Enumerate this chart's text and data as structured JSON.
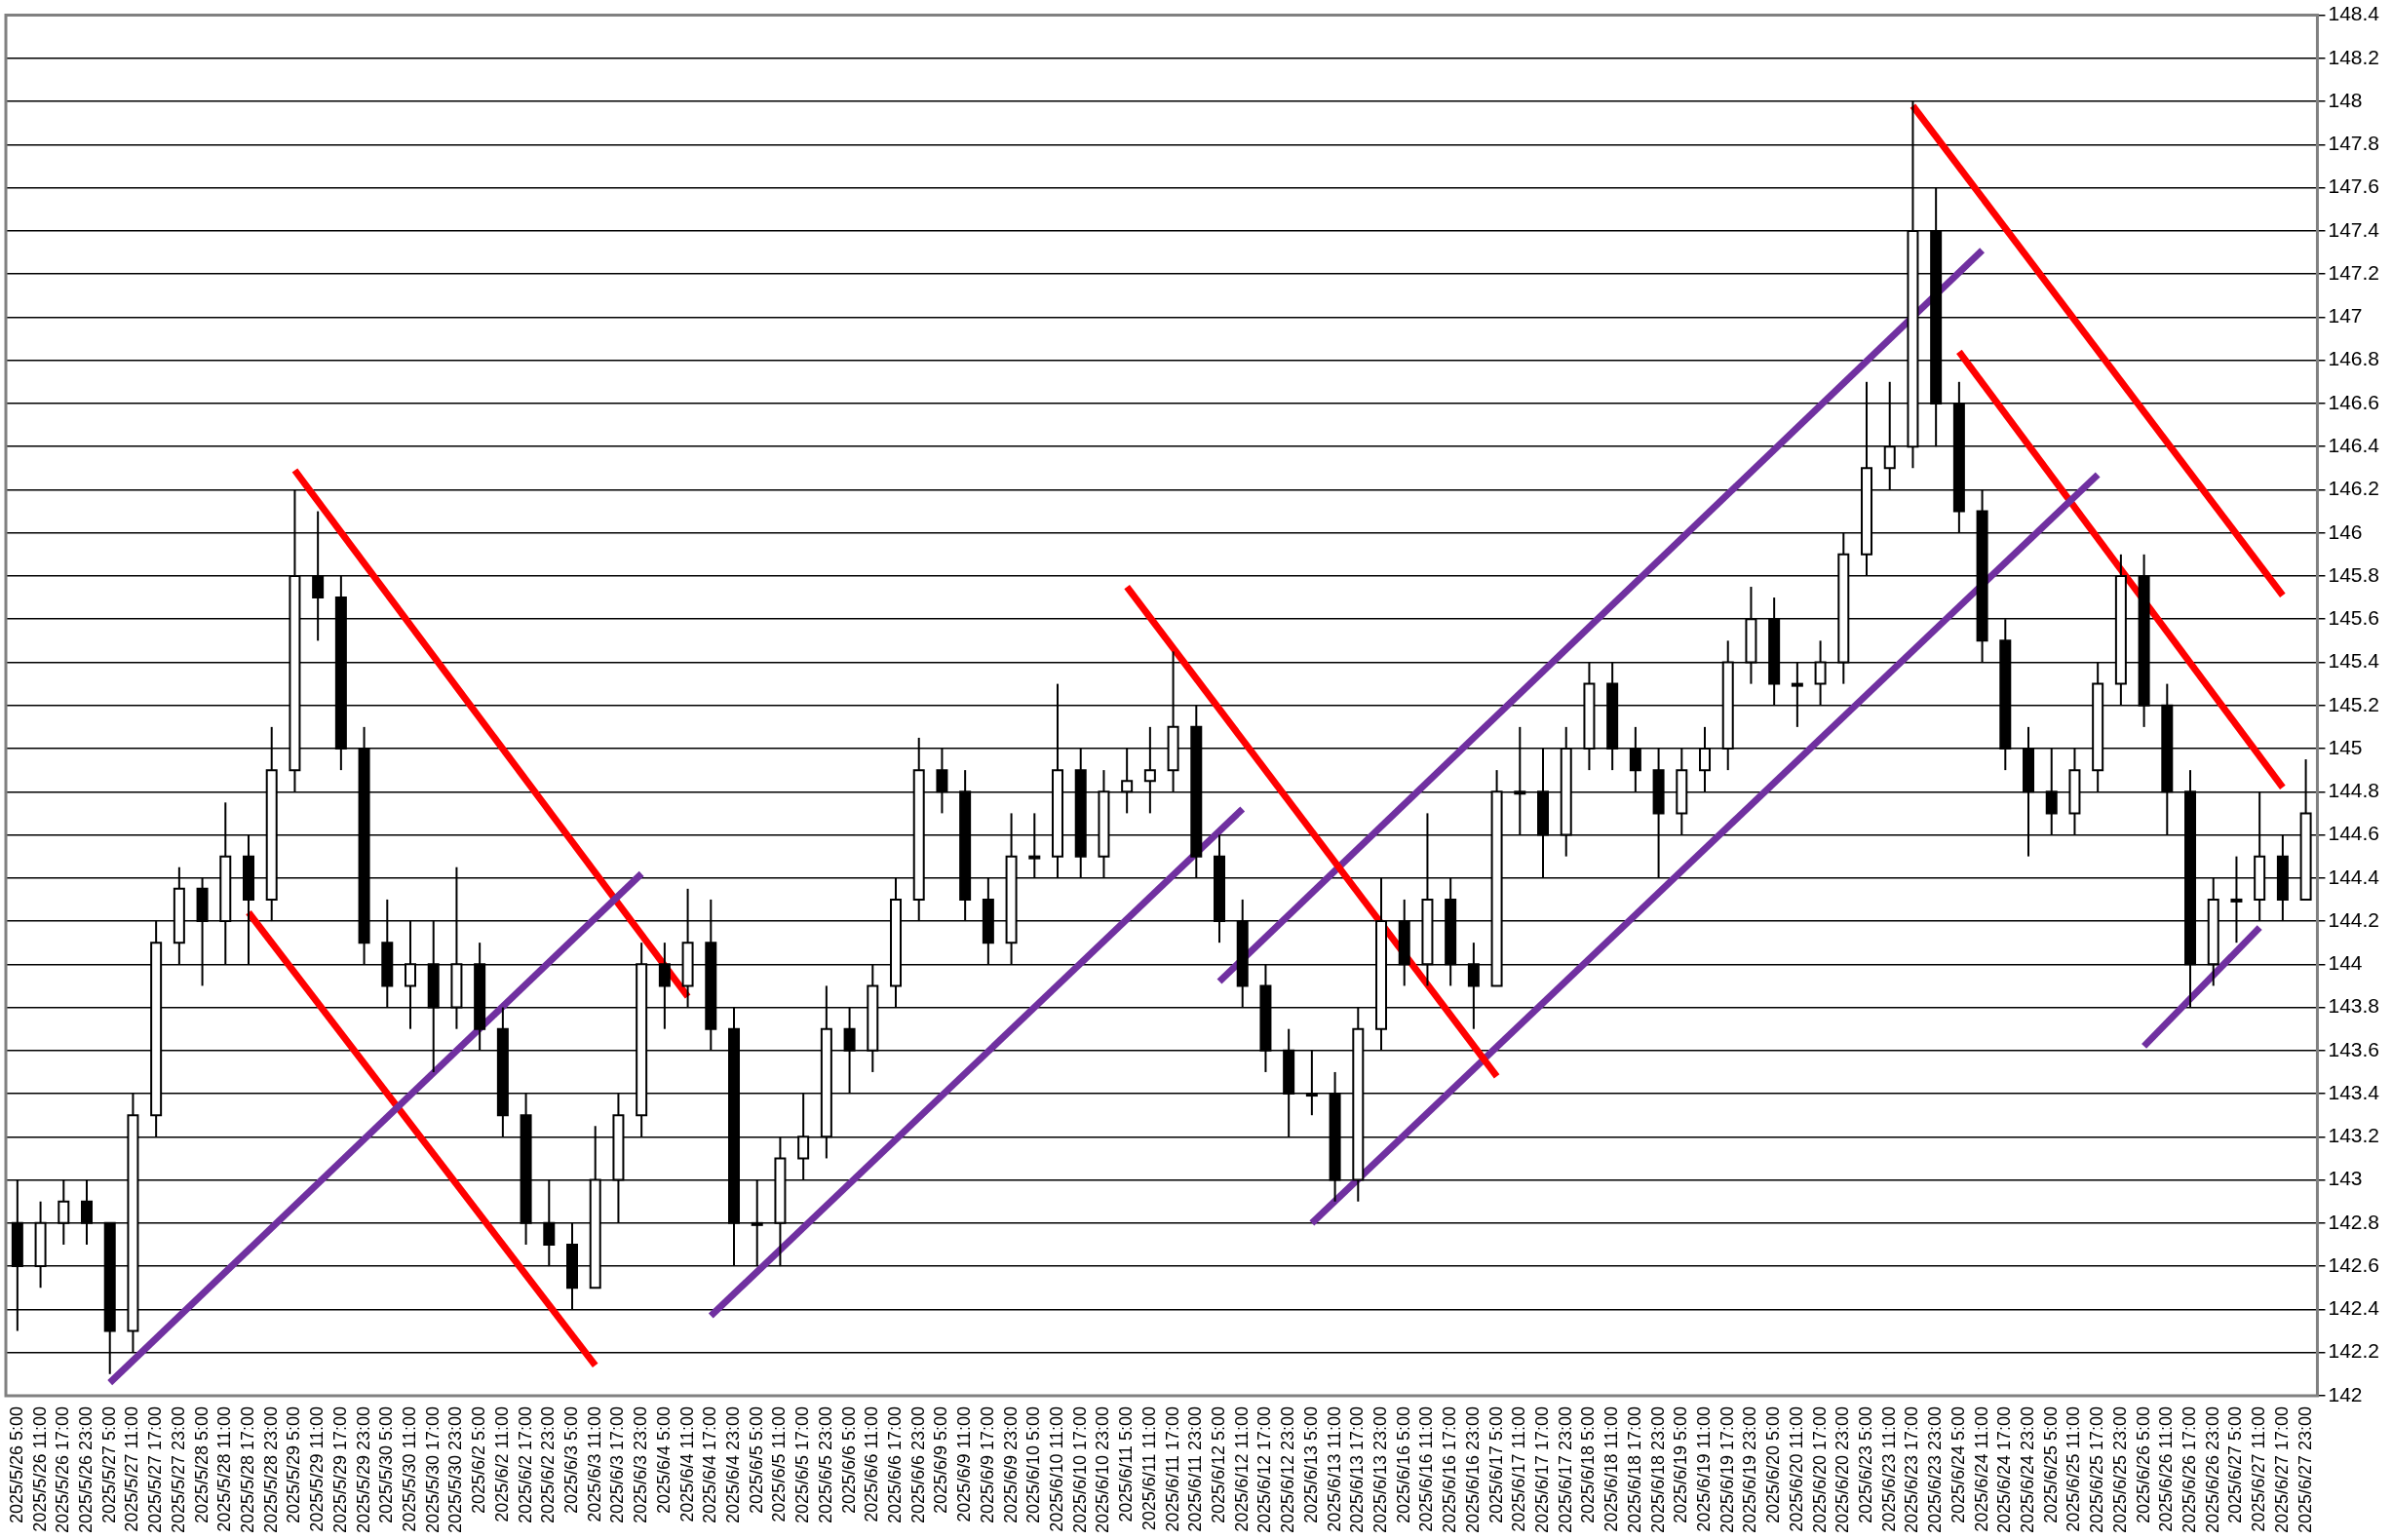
{
  "chart_data": {
    "type": "candlestick",
    "categories": [
      "2025/5/26 5:00",
      "2025/5/26 11:00",
      "2025/5/26 17:00",
      "2025/5/26 23:00",
      "2025/5/27 5:00",
      "2025/5/27 11:00",
      "2025/5/27 17:00",
      "2025/5/27 23:00",
      "2025/5/28 5:00",
      "2025/5/28 11:00",
      "2025/5/28 17:00",
      "2025/5/28 23:00",
      "2025/5/29 5:00",
      "2025/5/29 11:00",
      "2025/5/29 17:00",
      "2025/5/29 23:00",
      "2025/5/30 5:00",
      "2025/5/30 11:00",
      "2025/5/30 17:00",
      "2025/5/30 23:00",
      "2025/6/2 5:00",
      "2025/6/2 11:00",
      "2025/6/2 17:00",
      "2025/6/2 23:00",
      "2025/6/3 5:00",
      "2025/6/3 11:00",
      "2025/6/3 17:00",
      "2025/6/3 23:00",
      "2025/6/4 5:00",
      "2025/6/4 11:00",
      "2025/6/4 17:00",
      "2025/6/4 23:00",
      "2025/6/5 5:00",
      "2025/6/5 11:00",
      "2025/6/5 17:00",
      "2025/6/5 23:00",
      "2025/6/6 5:00",
      "2025/6/6 11:00",
      "2025/6/6 17:00",
      "2025/6/6 23:00",
      "2025/6/9 5:00",
      "2025/6/9 11:00",
      "2025/6/9 17:00",
      "2025/6/9 23:00",
      "2025/6/10 5:00",
      "2025/6/10 11:00",
      "2025/6/10 17:00",
      "2025/6/10 23:00",
      "2025/6/11 5:00",
      "2025/6/11 11:00",
      "2025/6/11 17:00",
      "2025/6/11 23:00",
      "2025/6/12 5:00",
      "2025/6/12 11:00",
      "2025/6/12 17:00",
      "2025/6/12 23:00",
      "2025/6/13 5:00",
      "2025/6/13 11:00",
      "2025/6/13 17:00",
      "2025/6/13 23:00",
      "2025/6/16 5:00",
      "2025/6/16 11:00",
      "2025/6/16 17:00",
      "2025/6/16 23:00",
      "2025/6/17 5:00",
      "2025/6/17 11:00",
      "2025/6/17 17:00",
      "2025/6/17 23:00",
      "2025/6/18 5:00",
      "2025/6/18 11:00",
      "2025/6/18 17:00",
      "2025/6/18 23:00",
      "2025/6/19 5:00",
      "2025/6/19 11:00",
      "2025/6/19 17:00",
      "2025/6/19 23:00",
      "2025/6/20 5:00",
      "2025/6/20 11:00",
      "2025/6/20 17:00",
      "2025/6/20 23:00",
      "2025/6/23 5:00",
      "2025/6/23 11:00",
      "2025/6/23 17:00",
      "2025/6/23 23:00",
      "2025/6/24 5:00",
      "2025/6/24 11:00",
      "2025/6/24 17:00",
      "2025/6/24 23:00",
      "2025/6/25 5:00",
      "2025/6/25 11:00",
      "2025/6/25 17:00",
      "2025/6/25 23:00",
      "2025/6/26 5:00",
      "2025/6/26 11:00",
      "2025/6/26 17:00",
      "2025/6/26 23:00",
      "2025/6/27 5:00",
      "2025/6/27 11:00",
      "2025/6/27 17:00",
      "2025/6/27 23:00"
    ],
    "ohlc": [
      [
        142.8,
        143.0,
        142.3,
        142.6
      ],
      [
        142.6,
        142.9,
        142.5,
        142.8
      ],
      [
        142.8,
        143.0,
        142.7,
        142.9
      ],
      [
        142.9,
        143.0,
        142.7,
        142.8
      ],
      [
        142.8,
        142.8,
        142.1,
        142.3
      ],
      [
        142.3,
        143.4,
        142.2,
        143.3
      ],
      [
        143.3,
        144.2,
        143.2,
        144.1
      ],
      [
        144.1,
        144.45,
        144.0,
        144.35
      ],
      [
        144.35,
        144.4,
        143.9,
        144.2
      ],
      [
        144.2,
        144.75,
        144.0,
        144.5
      ],
      [
        144.5,
        144.6,
        144.0,
        144.3
      ],
      [
        144.3,
        145.1,
        144.2,
        144.9
      ],
      [
        144.9,
        146.2,
        144.8,
        145.8
      ],
      [
        145.8,
        146.1,
        145.5,
        145.7
      ],
      [
        145.7,
        145.8,
        144.9,
        145.0
      ],
      [
        145.0,
        145.1,
        144.0,
        144.1
      ],
      [
        144.1,
        144.3,
        143.8,
        143.9
      ],
      [
        143.9,
        144.2,
        143.7,
        144.0
      ],
      [
        144.0,
        144.2,
        143.5,
        143.8
      ],
      [
        143.8,
        144.45,
        143.7,
        144.0
      ],
      [
        144.0,
        144.1,
        143.6,
        143.7
      ],
      [
        143.7,
        143.8,
        143.2,
        143.3
      ],
      [
        143.3,
        143.4,
        142.7,
        142.8
      ],
      [
        142.8,
        143.0,
        142.6,
        142.7
      ],
      [
        142.7,
        142.8,
        142.4,
        142.5
      ],
      [
        142.5,
        143.25,
        142.5,
        143.0
      ],
      [
        143.0,
        143.4,
        142.8,
        143.3
      ],
      [
        143.3,
        144.1,
        143.2,
        144.0
      ],
      [
        144.0,
        144.1,
        143.7,
        143.9
      ],
      [
        143.9,
        144.35,
        143.8,
        144.1
      ],
      [
        144.1,
        144.3,
        143.6,
        143.7
      ],
      [
        143.7,
        143.8,
        142.6,
        142.8
      ],
      [
        142.8,
        143.0,
        142.6,
        142.8
      ],
      [
        142.8,
        143.2,
        142.6,
        143.1
      ],
      [
        143.1,
        143.4,
        143.0,
        143.2
      ],
      [
        143.2,
        143.9,
        143.1,
        143.7
      ],
      [
        143.7,
        143.8,
        143.4,
        143.6
      ],
      [
        143.6,
        144.0,
        143.5,
        143.9
      ],
      [
        143.9,
        144.4,
        143.8,
        144.3
      ],
      [
        144.3,
        145.05,
        144.2,
        144.9
      ],
      [
        144.9,
        145.0,
        144.7,
        144.8
      ],
      [
        144.8,
        144.9,
        144.2,
        144.3
      ],
      [
        144.3,
        144.4,
        144.0,
        144.1
      ],
      [
        144.1,
        144.7,
        144.0,
        144.5
      ],
      [
        144.5,
        144.7,
        144.4,
        144.5
      ],
      [
        144.5,
        145.3,
        144.4,
        144.9
      ],
      [
        144.9,
        145.0,
        144.4,
        144.5
      ],
      [
        144.5,
        144.9,
        144.4,
        144.8
      ],
      [
        144.8,
        145.0,
        144.7,
        144.85
      ],
      [
        144.85,
        145.1,
        144.7,
        144.9
      ],
      [
        144.9,
        145.45,
        144.8,
        145.1
      ],
      [
        145.1,
        145.2,
        144.4,
        144.5
      ],
      [
        144.5,
        144.6,
        144.1,
        144.2
      ],
      [
        144.2,
        144.3,
        143.8,
        143.9
      ],
      [
        143.9,
        144.0,
        143.5,
        143.6
      ],
      [
        143.6,
        143.7,
        143.2,
        143.4
      ],
      [
        143.4,
        143.6,
        143.3,
        143.4
      ],
      [
        143.4,
        143.5,
        142.9,
        143.0
      ],
      [
        143.0,
        143.8,
        142.9,
        143.7
      ],
      [
        143.7,
        144.4,
        143.6,
        144.2
      ],
      [
        144.2,
        144.3,
        143.9,
        144.0
      ],
      [
        144.0,
        144.7,
        143.9,
        144.3
      ],
      [
        144.3,
        144.4,
        143.9,
        144.0
      ],
      [
        144.0,
        144.1,
        143.7,
        143.9
      ],
      [
        143.9,
        144.9,
        143.9,
        144.8
      ],
      [
        144.8,
        145.1,
        144.6,
        144.8
      ],
      [
        144.8,
        145.0,
        144.4,
        144.6
      ],
      [
        144.6,
        145.1,
        144.5,
        145.0
      ],
      [
        145.0,
        145.4,
        144.9,
        145.3
      ],
      [
        145.3,
        145.4,
        144.9,
        145.0
      ],
      [
        145.0,
        145.1,
        144.8,
        144.9
      ],
      [
        144.9,
        145.0,
        144.4,
        144.7
      ],
      [
        144.7,
        145.0,
        144.6,
        144.9
      ],
      [
        144.9,
        145.1,
        144.8,
        145.0
      ],
      [
        145.0,
        145.5,
        144.9,
        145.4
      ],
      [
        145.4,
        145.75,
        145.3,
        145.6
      ],
      [
        145.6,
        145.7,
        145.2,
        145.3
      ],
      [
        145.3,
        145.4,
        145.1,
        145.3
      ],
      [
        145.3,
        145.5,
        145.2,
        145.4
      ],
      [
        145.4,
        146.0,
        145.3,
        145.9
      ],
      [
        145.9,
        146.7,
        145.8,
        146.3
      ],
      [
        146.3,
        146.7,
        146.2,
        146.4
      ],
      [
        146.4,
        148.0,
        146.3,
        147.4
      ],
      [
        147.4,
        147.6,
        146.4,
        146.6
      ],
      [
        146.6,
        146.7,
        146.0,
        146.1
      ],
      [
        146.1,
        146.2,
        145.4,
        145.5
      ],
      [
        145.5,
        145.6,
        144.9,
        145.0
      ],
      [
        145.0,
        145.1,
        144.5,
        144.8
      ],
      [
        144.8,
        145.0,
        144.6,
        144.7
      ],
      [
        144.7,
        145.0,
        144.6,
        144.9
      ],
      [
        144.9,
        145.4,
        144.8,
        145.3
      ],
      [
        145.3,
        145.9,
        145.2,
        145.8
      ],
      [
        145.8,
        145.9,
        145.1,
        145.2
      ],
      [
        145.2,
        145.3,
        144.6,
        144.8
      ],
      [
        144.8,
        144.9,
        143.8,
        144.0
      ],
      [
        144.0,
        144.4,
        143.9,
        144.3
      ],
      [
        144.3,
        144.5,
        144.1,
        144.3
      ],
      [
        144.3,
        144.8,
        144.2,
        144.5
      ],
      [
        144.5,
        144.6,
        144.2,
        144.3
      ],
      [
        144.3,
        144.95,
        144.3,
        144.7
      ]
    ],
    "series": [
      {
        "type": "line",
        "color": "#7030a0",
        "x": [
          "2025/5/27 5:00",
          "2025/6/3 23:00"
        ],
        "values": [
          142.06,
          144.42
        ]
      },
      {
        "type": "line",
        "color": "#ff0000",
        "x": [
          "2025/5/29 5:00",
          "2025/6/4 11:00"
        ],
        "values": [
          146.29,
          143.85
        ]
      },
      {
        "type": "line",
        "color": "#ff0000",
        "x": [
          "2025/5/28 17:00",
          "2025/6/3 11:00"
        ],
        "values": [
          144.24,
          142.14
        ]
      },
      {
        "type": "line",
        "color": "#7030a0",
        "x": [
          "2025/6/4 17:00",
          "2025/6/12 11:00"
        ],
        "values": [
          142.37,
          144.72
        ]
      },
      {
        "type": "line",
        "color": "#ff0000",
        "x": [
          "2025/6/11 5:00",
          "2025/6/17 5:00"
        ],
        "values": [
          145.75,
          143.48
        ]
      },
      {
        "type": "line",
        "color": "#7030a0",
        "x": [
          "2025/6/12 5:00",
          "2025/6/24 11:00"
        ],
        "values": [
          143.92,
          147.31
        ]
      },
      {
        "type": "line",
        "color": "#7030a0",
        "x": [
          "2025/6/13 5:00",
          "2025/6/25 17:00"
        ],
        "values": [
          142.8,
          146.27
        ]
      },
      {
        "type": "line",
        "color": "#ff0000",
        "x": [
          "2025/6/23 17:00",
          "2025/6/27 17:00"
        ],
        "values": [
          147.98,
          145.71
        ]
      },
      {
        "type": "line",
        "color": "#ff0000",
        "x": [
          "2025/6/24 5:00",
          "2025/6/27 17:00"
        ],
        "values": [
          146.84,
          144.82
        ]
      },
      {
        "type": "line",
        "color": "#7030a0",
        "x": [
          "2025/6/26 5:00",
          "2025/6/27 11:00"
        ],
        "values": [
          143.62,
          144.17
        ]
      }
    ],
    "ylim": [
      142,
      148.4
    ],
    "yticks": [
      142,
      142.2,
      142.4,
      142.6,
      142.8,
      143,
      143.2,
      143.4,
      143.6,
      143.8,
      144,
      144.2,
      144.4,
      144.6,
      144.8,
      145,
      145.2,
      145.4,
      145.6,
      145.8,
      146,
      146.2,
      146.4,
      146.6,
      146.8,
      147,
      147.2,
      147.4,
      147.6,
      147.8,
      148,
      148.2,
      148.4
    ],
    "grid": "y"
  }
}
